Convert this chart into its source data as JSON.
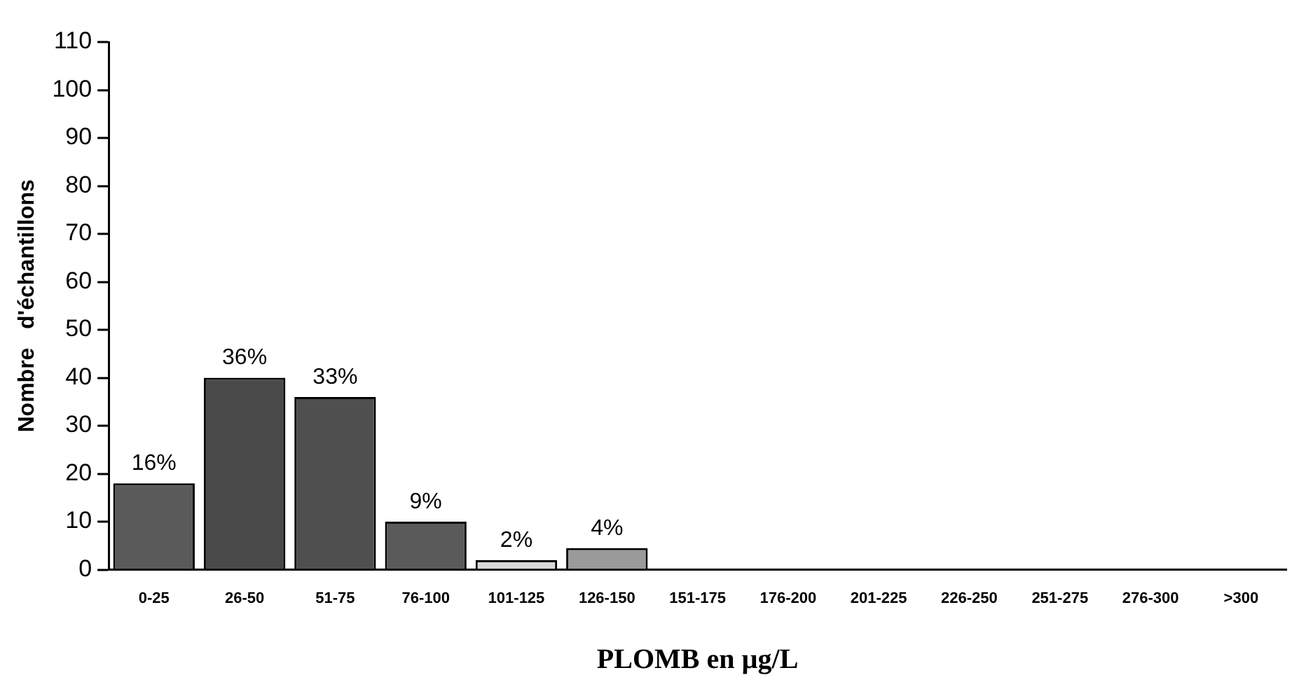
{
  "chart_data": {
    "type": "bar",
    "xlabel": "PLOMB en µg/L",
    "ylabel": "Nombre   d'échantillons",
    "categories": [
      "0-25",
      "26-50",
      "51-75",
      "76-100",
      "101-125",
      "126-150",
      "151-175",
      "176-200",
      "201-225",
      "226-250",
      "251-275",
      "276-300",
      ">300"
    ],
    "values": [
      18,
      40,
      36,
      10,
      2,
      4.5,
      0,
      0,
      0,
      0,
      0,
      0,
      0
    ],
    "colors": [
      "#5a5a5a",
      "#4a4a4a",
      "#4f4f4f",
      "#5a5a5a",
      "#d8d8d8",
      "#9a9a9a",
      "#5a5a5a",
      "#5a5a5a",
      "#5a5a5a",
      "#5a5a5a",
      "#5a5a5a",
      "#5a5a5a",
      "#5a5a5a"
    ],
    "annotations": [
      {
        "text": "16%",
        "x": "0-25",
        "y": 18
      },
      {
        "text": "36%",
        "x": "26-50",
        "y": 40
      },
      {
        "text": "33%",
        "x": "51-75",
        "y": 36
      },
      {
        "text": "9%",
        "x": "76-100",
        "y": 10
      },
      {
        "text": "2%",
        "x": "101-125",
        "y": 2
      },
      {
        "text": "4%",
        "x": "126-150",
        "y": 4.5
      }
    ],
    "ylim": [
      0,
      110
    ],
    "yticks": [
      0,
      10,
      20,
      30,
      40,
      50,
      60,
      70,
      80,
      90,
      100,
      110
    ],
    "grid": false,
    "legend": false
  }
}
